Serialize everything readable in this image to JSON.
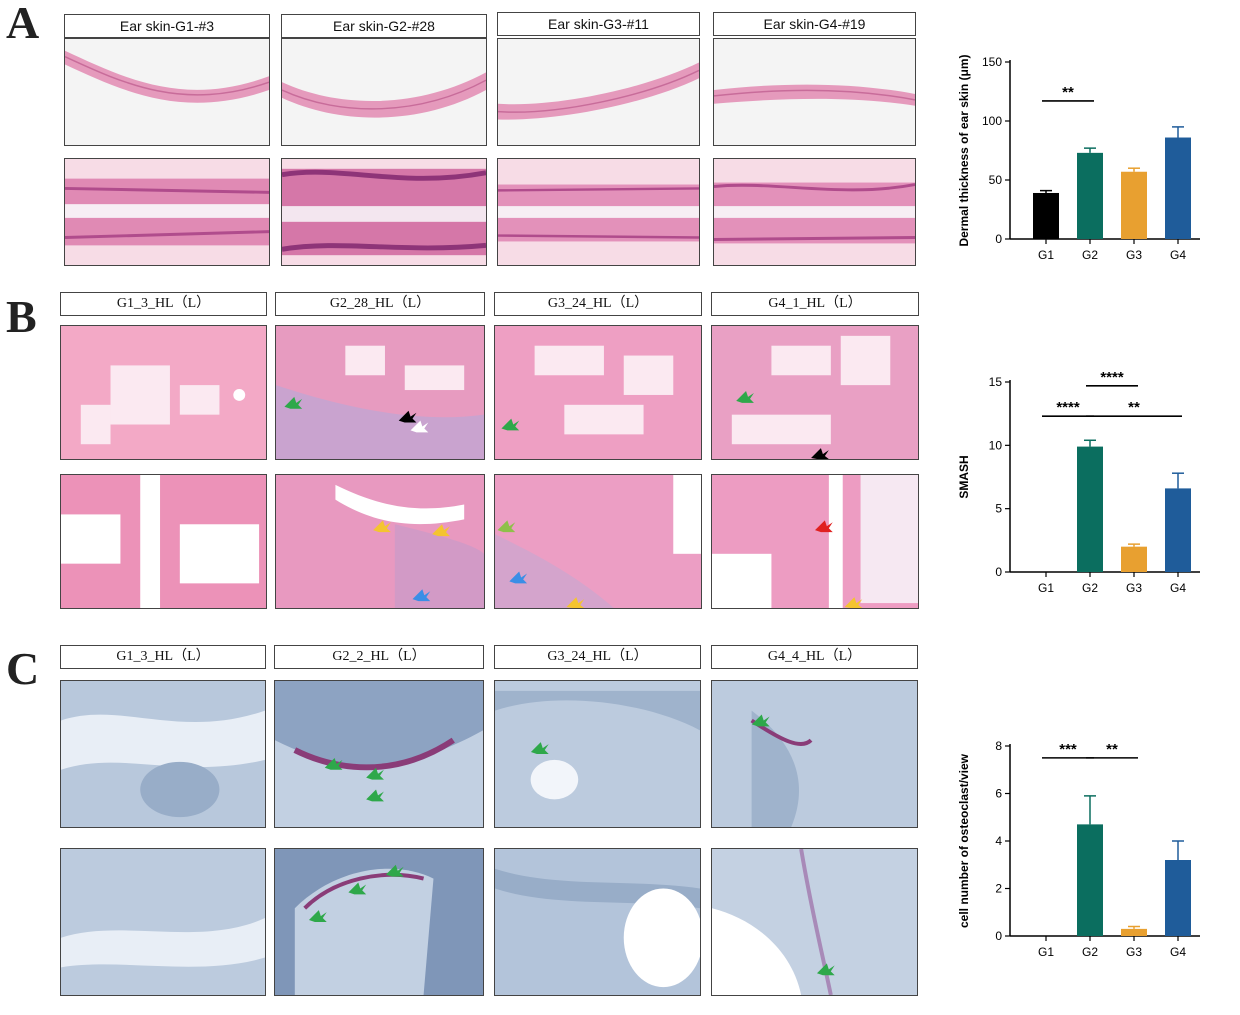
{
  "figure": {
    "panels": [
      {
        "letter": "A",
        "image_labels": [
          "Ear skin-G1-#3",
          "Ear skin-G2-#28",
          "Ear skin-G3-#11",
          "Ear skin-G4-#19"
        ]
      },
      {
        "letter": "B",
        "image_labels": [
          "G1_3_HL（L）",
          "G2_28_HL（L）",
          "G3_24_HL（L）",
          "G4_1_HL（L）"
        ]
      },
      {
        "letter": "C",
        "image_labels": [
          "G1_3_HL（L）",
          "G2_2_HL（L）",
          "G3_24_HL（L）",
          "G4_4_HL（L）"
        ]
      }
    ],
    "colors": {
      "G1": "#000000",
      "G2": "#0b6e5f",
      "G3": "#e8a030",
      "G4": "#1f5c9a",
      "he_stain": "#e87aa8",
      "ihc_stain": "#8fa6c4"
    },
    "arrow_icons": [
      "green-arrow-icon",
      "black-arrow-icon",
      "white-arrow-icon",
      "yellow-arrow-icon",
      "blue-arrow-icon",
      "red-arrow-icon"
    ]
  },
  "chart_data": [
    {
      "type": "bar",
      "categories": [
        "G1",
        "G2",
        "G3",
        "G4"
      ],
      "values": [
        39,
        73,
        57,
        86
      ],
      "errors": [
        2,
        4,
        3,
        9
      ],
      "ylabel": "Dermal thickness of ear skin (μm)",
      "ylim": [
        0,
        150
      ],
      "yticks": [
        "0",
        "50",
        "100",
        "150"
      ],
      "significance": [
        {
          "from": 0,
          "to": 1,
          "label": "**"
        }
      ]
    },
    {
      "type": "bar",
      "categories": [
        "G1",
        "G2",
        "G3",
        "G4"
      ],
      "values": [
        0,
        9.9,
        2.0,
        6.6
      ],
      "errors": [
        0,
        0.5,
        0.2,
        1.2
      ],
      "ylabel": "SMASH",
      "ylim": [
        0,
        15
      ],
      "yticks": [
        "0",
        "5",
        "10",
        "15"
      ],
      "significance": [
        {
          "from": 1,
          "to": 2,
          "label": "****"
        },
        {
          "from": 0,
          "to": 1,
          "label": "****"
        },
        {
          "from": 1,
          "to": 3,
          "label": "**"
        }
      ]
    },
    {
      "type": "bar",
      "categories": [
        "G1",
        "G2",
        "G3",
        "G4"
      ],
      "values": [
        0,
        4.7,
        0.3,
        3.2
      ],
      "errors": [
        0,
        1.2,
        0.1,
        0.8
      ],
      "ylabel": "cell number of osteoclast/view",
      "ylim": [
        0,
        8
      ],
      "yticks": [
        "0",
        "2",
        "4",
        "6",
        "8"
      ],
      "significance": [
        {
          "from": 0,
          "to": 1,
          "label": "***"
        },
        {
          "from": 1,
          "to": 2,
          "label": "**"
        }
      ]
    }
  ]
}
